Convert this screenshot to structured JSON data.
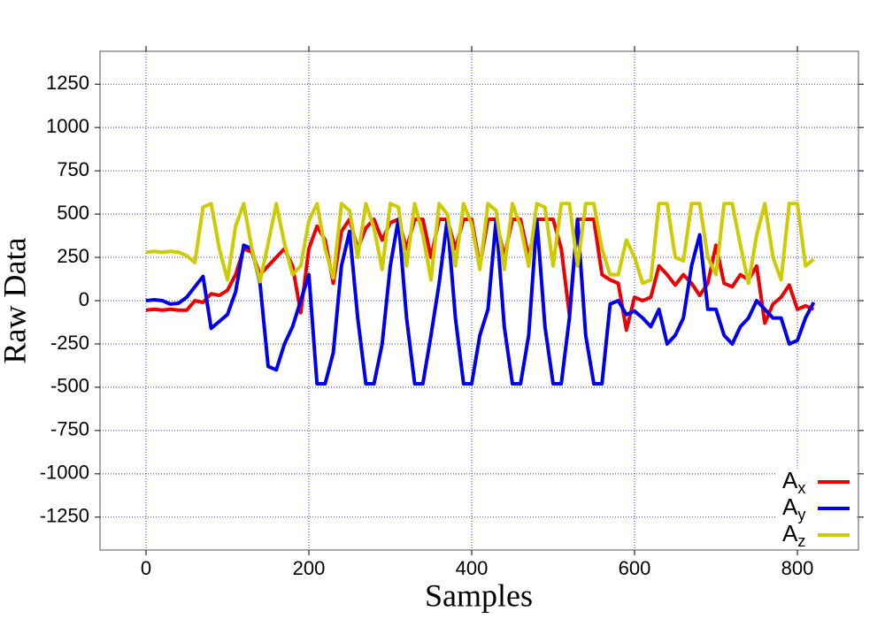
{
  "chart_data": {
    "type": "line",
    "xlabel": "Samples",
    "ylabel": "Raw Data",
    "xlim": [
      -56.5,
      875
    ],
    "ylim": [
      -1440,
      1440
    ],
    "xticks": [
      0,
      200,
      400,
      600,
      800
    ],
    "yticks": [
      -1250,
      -1000,
      -750,
      -500,
      -250,
      0,
      250,
      500,
      750,
      1000,
      1250
    ],
    "grid": true,
    "legend": "lower right",
    "x": [
      0,
      10,
      20,
      30,
      40,
      50,
      60,
      70,
      80,
      90,
      100,
      110,
      120,
      130,
      140,
      150,
      160,
      170,
      180,
      190,
      200,
      210,
      220,
      230,
      240,
      250,
      260,
      270,
      280,
      290,
      300,
      310,
      320,
      330,
      340,
      350,
      360,
      370,
      380,
      390,
      400,
      410,
      420,
      430,
      440,
      450,
      460,
      470,
      480,
      490,
      500,
      510,
      520,
      530,
      540,
      550,
      560,
      570,
      580,
      590,
      600,
      610,
      620,
      630,
      640,
      650,
      660,
      670,
      680,
      690,
      700,
      710,
      720,
      730,
      740,
      750,
      760,
      770,
      780,
      790,
      800,
      810,
      820
    ],
    "series": [
      {
        "name": "Ax",
        "color": "#ee0000",
        "values": [
          -55,
          -50,
          -55,
          -50,
          -55,
          -55,
          0,
          -10,
          40,
          30,
          60,
          150,
          300,
          280,
          150,
          200,
          250,
          300,
          200,
          -70,
          300,
          430,
          350,
          100,
          400,
          470,
          300,
          420,
          470,
          350,
          450,
          470,
          300,
          470,
          470,
          250,
          470,
          470,
          300,
          470,
          470,
          200,
          470,
          470,
          250,
          470,
          470,
          250,
          470,
          470,
          470,
          300,
          -80,
          470,
          470,
          470,
          150,
          120,
          100,
          -170,
          20,
          0,
          20,
          200,
          150,
          90,
          150,
          100,
          30,
          100,
          320,
          100,
          80,
          150,
          120,
          200,
          -130,
          -20,
          20,
          90,
          -50,
          -30,
          -50
        ]
      },
      {
        "name": "Ay",
        "color": "#0000ee",
        "values": [
          0,
          5,
          0,
          -20,
          -15,
          20,
          80,
          140,
          -160,
          -120,
          -80,
          50,
          320,
          300,
          100,
          -380,
          -400,
          -250,
          -150,
          0,
          150,
          -480,
          -480,
          -300,
          200,
          400,
          -100,
          -480,
          -480,
          -250,
          200,
          470,
          -100,
          -480,
          -480,
          -200,
          100,
          470,
          -100,
          -480,
          -480,
          -200,
          -50,
          470,
          -150,
          -480,
          -480,
          -200,
          470,
          -150,
          -480,
          -480,
          -100,
          470,
          -200,
          -480,
          -480,
          -20,
          0,
          -80,
          -60,
          -100,
          -150,
          -50,
          -250,
          -200,
          -100,
          200,
          380,
          -50,
          -50,
          -200,
          -250,
          -150,
          -100,
          0,
          -50,
          -100,
          -100,
          -250,
          -230,
          -100,
          -10
        ]
      },
      {
        "name": "Az",
        "color": "#cccc00",
        "values": [
          280,
          285,
          280,
          285,
          280,
          260,
          220,
          540,
          560,
          300,
          120,
          430,
          560,
          300,
          110,
          330,
          560,
          330,
          150,
          200,
          460,
          560,
          300,
          130,
          560,
          520,
          250,
          560,
          420,
          180,
          560,
          540,
          200,
          560,
          380,
          120,
          560,
          500,
          200,
          560,
          440,
          180,
          560,
          520,
          180,
          560,
          430,
          200,
          560,
          540,
          200,
          560,
          560,
          200,
          560,
          560,
          300,
          150,
          150,
          350,
          250,
          100,
          120,
          560,
          560,
          250,
          230,
          560,
          560,
          250,
          150,
          560,
          560,
          320,
          100,
          380,
          560,
          250,
          120,
          560,
          560,
          200,
          240
        ]
      }
    ]
  }
}
